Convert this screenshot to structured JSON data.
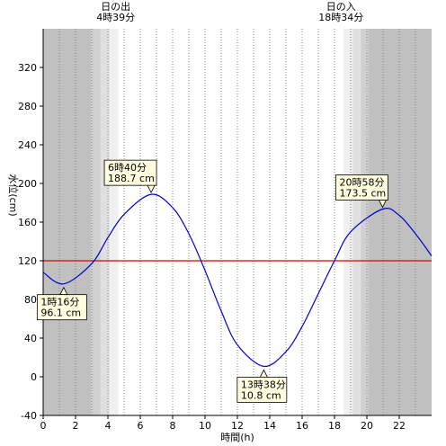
{
  "chart_data": {
    "type": "line",
    "xlabel": "時間(h)",
    "ylabel": "水位(cm)",
    "xlim": [
      0,
      24
    ],
    "ylim": [
      -40,
      360
    ],
    "x_ticks": [
      0,
      2,
      4,
      6,
      8,
      10,
      12,
      14,
      16,
      18,
      20,
      22
    ],
    "y_ticks": [
      -40,
      0,
      40,
      80,
      120,
      160,
      200,
      240,
      280,
      320
    ],
    "grid": "vertical-dotted-hourly",
    "series": [
      {
        "color": "#0000cc",
        "x": [
          0,
          1.27,
          3,
          4,
          5,
          6.67,
          8,
          9,
          10,
          11,
          12,
          13.63,
          15,
          16,
          17,
          18,
          19,
          20.97,
          22,
          23,
          24
        ],
        "y": [
          108,
          96.1,
          117,
          144,
          168,
          188.7,
          175,
          148,
          110,
          68,
          33,
          10.8,
          26,
          52,
          86,
          120,
          150,
          173.5,
          167,
          148,
          125
        ]
      }
    ],
    "reference_line": {
      "y": 120,
      "color": "#e00000"
    },
    "daylight": {
      "sunrise_label": "日の出",
      "sunrise_time": "4時39分",
      "sunrise_hour": 4.65,
      "sunset_label": "日の入",
      "sunset_time": "18時34分",
      "sunset_hour": 18.57,
      "dark_color": "#c0c0c0",
      "twilight_colors": [
        "#d0d0d0",
        "#e0e0e0",
        "#f0f0f0"
      ]
    },
    "annotations": [
      {
        "time": "1時16分",
        "value": "96.1 cm",
        "x": 1.27,
        "y": 96.1,
        "placement": "below"
      },
      {
        "time": "6時40分",
        "value": "188.7 cm",
        "x": 6.67,
        "y": 188.7,
        "placement": "above"
      },
      {
        "time": "13時38分",
        "value": "10.8 cm",
        "x": 13.63,
        "y": 10.8,
        "placement": "below"
      },
      {
        "time": "20時58分",
        "value": "173.5 cm",
        "x": 20.97,
        "y": 173.5,
        "placement": "above"
      }
    ],
    "colors": {
      "line": "#0000cc",
      "reference": "#e00000",
      "annotation_bg": "#ffffe0"
    }
  }
}
